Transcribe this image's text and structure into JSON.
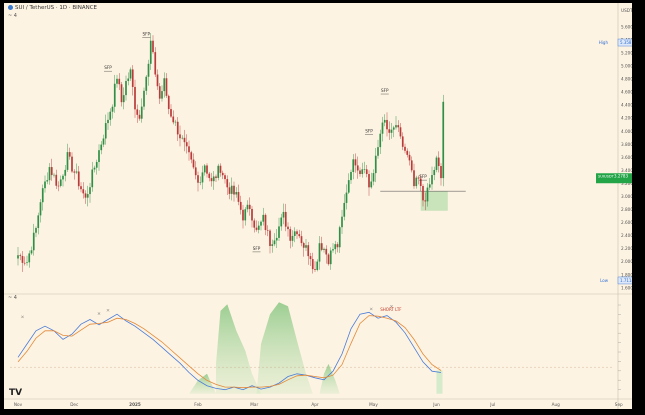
{
  "header": {
    "symbol_title": "SUI / TetherUS · 1D · BINANCE",
    "currency": "USDT",
    "indicator_marker": "~ 4",
    "osc_marker": "~ 4"
  },
  "chart_data": [
    {
      "type": "candlestick",
      "title": "SUI / TetherUS · 1D · BINANCE",
      "xlabel": "",
      "ylabel": "USDT",
      "x_ticks": [
        "Nov",
        "Dec",
        "2025",
        "Feb",
        "Mar",
        "Apr",
        "May",
        "Jun",
        "Jul",
        "Aug",
        "Sep"
      ],
      "y_ticks": [
        "1.6000",
        "1.8000",
        "2.0000",
        "2.2000",
        "2.4000",
        "2.6000",
        "2.8000",
        "3.0000",
        "3.2000",
        "3.4000",
        "3.6000",
        "3.8000",
        "4.0000",
        "4.2000",
        "4.4000",
        "4.6000",
        "4.8000",
        "5.0000",
        "5.2000",
        "5.4000",
        "5.6000"
      ],
      "ylim": [
        1.55,
        5.75
      ],
      "price_labels": [
        {
          "name": "High",
          "value": "5.3587",
          "color": "#2f6fd6"
        },
        {
          "name": "SUIUSDT",
          "value": "3.2783",
          "color": "#22a447"
        },
        {
          "name": "Low",
          "value": "1.7114",
          "color": "#2f6fd6"
        }
      ],
      "annotations": [
        "SFP",
        "SFP",
        "SFP",
        "SFP",
        "SFP",
        "SFP"
      ],
      "support_level": 3.08,
      "demand_zone": [
        2.78,
        3.08
      ],
      "anchors": [
        [
          0,
          2.1
        ],
        [
          4,
          2.0
        ],
        [
          8,
          2.5
        ],
        [
          10,
          2.95
        ],
        [
          14,
          3.45
        ],
        [
          18,
          3.15
        ],
        [
          22,
          3.6
        ],
        [
          26,
          3.3
        ],
        [
          30,
          2.95
        ],
        [
          34,
          3.45
        ],
        [
          38,
          3.95
        ],
        [
          42,
          4.45
        ],
        [
          44,
          4.85
        ],
        [
          46,
          4.45
        ],
        [
          48,
          4.75
        ],
        [
          50,
          4.9
        ],
        [
          52,
          4.4
        ],
        [
          54,
          4.2
        ],
        [
          56,
          4.7
        ],
        [
          58,
          5.0
        ],
        [
          59,
          5.36
        ],
        [
          61,
          4.9
        ],
        [
          63,
          4.5
        ],
        [
          65,
          4.75
        ],
        [
          67,
          4.35
        ],
        [
          70,
          4.1
        ],
        [
          73,
          3.85
        ],
        [
          76,
          3.6
        ],
        [
          80,
          3.2
        ],
        [
          83,
          3.5
        ],
        [
          86,
          3.2
        ],
        [
          90,
          3.45
        ],
        [
          93,
          3.15
        ],
        [
          97,
          3.0
        ],
        [
          100,
          2.7
        ],
        [
          103,
          2.85
        ],
        [
          106,
          2.45
        ],
        [
          109,
          2.65
        ],
        [
          112,
          2.3
        ],
        [
          115,
          2.45
        ],
        [
          118,
          2.7
        ],
        [
          121,
          2.4
        ],
        [
          124,
          2.5
        ],
        [
          127,
          2.25
        ],
        [
          130,
          2.1
        ],
        [
          132,
          1.85
        ],
        [
          134,
          2.3
        ],
        [
          136,
          2.2
        ],
        [
          138,
          2.05
        ],
        [
          140,
          2.2
        ],
        [
          142,
          2.25
        ],
        [
          144,
          2.65
        ],
        [
          146,
          3.1
        ],
        [
          148,
          3.45
        ],
        [
          150,
          3.55
        ],
        [
          152,
          3.4
        ],
        [
          154,
          3.5
        ],
        [
          156,
          3.15
        ],
        [
          158,
          3.35
        ],
        [
          160,
          3.75
        ],
        [
          162,
          4.2
        ],
        [
          164,
          4.0
        ],
        [
          166,
          3.95
        ],
        [
          168,
          4.1
        ],
        [
          170,
          3.85
        ],
        [
          172,
          3.7
        ],
        [
          174,
          3.5
        ],
        [
          176,
          3.15
        ],
        [
          178,
          3.25
        ],
        [
          180,
          2.95
        ],
        [
          182,
          3.05
        ],
        [
          184,
          3.3
        ],
        [
          186,
          3.55
        ],
        [
          188,
          3.28
        ]
      ]
    },
    {
      "type": "line",
      "title": "",
      "series": [
        {
          "name": "",
          "color": "#4a7bd8",
          "values": [
            [
              0,
              0.15
            ],
            [
              4,
              0.35
            ],
            [
              8,
              0.55
            ],
            [
              12,
              0.62
            ],
            [
              16,
              0.55
            ],
            [
              20,
              0.42
            ],
            [
              24,
              0.5
            ],
            [
              28,
              0.65
            ],
            [
              32,
              0.72
            ],
            [
              36,
              0.64
            ],
            [
              40,
              0.72
            ],
            [
              44,
              0.8
            ],
            [
              48,
              0.7
            ],
            [
              52,
              0.62
            ],
            [
              56,
              0.52
            ],
            [
              60,
              0.42
            ],
            [
              64,
              0.3
            ],
            [
              68,
              0.18
            ],
            [
              72,
              0.06
            ],
            [
              76,
              -0.08
            ],
            [
              80,
              -0.2
            ],
            [
              84,
              -0.28
            ],
            [
              88,
              -0.32
            ],
            [
              92,
              -0.34
            ],
            [
              96,
              -0.3
            ],
            [
              100,
              -0.34
            ],
            [
              104,
              -0.28
            ],
            [
              108,
              -0.33
            ],
            [
              112,
              -0.3
            ],
            [
              116,
              -0.24
            ],
            [
              120,
              -0.14
            ],
            [
              124,
              -0.1
            ],
            [
              128,
              -0.12
            ],
            [
              132,
              -0.16
            ],
            [
              136,
              -0.19
            ],
            [
              140,
              -0.06
            ],
            [
              144,
              0.2
            ],
            [
              148,
              0.58
            ],
            [
              152,
              0.8
            ],
            [
              156,
              0.83
            ],
            [
              160,
              0.74
            ],
            [
              164,
              0.78
            ],
            [
              168,
              0.68
            ],
            [
              172,
              0.52
            ],
            [
              176,
              0.3
            ],
            [
              180,
              0.08
            ],
            [
              184,
              -0.06
            ],
            [
              188,
              -0.08
            ]
          ]
        },
        {
          "name": "",
          "color": "#e2893a",
          "values": [
            [
              0,
              0.08
            ],
            [
              4,
              0.24
            ],
            [
              8,
              0.44
            ],
            [
              12,
              0.55
            ],
            [
              16,
              0.55
            ],
            [
              20,
              0.48
            ],
            [
              24,
              0.47
            ],
            [
              28,
              0.56
            ],
            [
              32,
              0.65
            ],
            [
              36,
              0.66
            ],
            [
              40,
              0.68
            ],
            [
              44,
              0.74
            ],
            [
              48,
              0.72
            ],
            [
              52,
              0.66
            ],
            [
              56,
              0.58
            ],
            [
              60,
              0.48
            ],
            [
              64,
              0.38
            ],
            [
              68,
              0.26
            ],
            [
              72,
              0.14
            ],
            [
              76,
              0.02
            ],
            [
              80,
              -0.1
            ],
            [
              84,
              -0.2
            ],
            [
              88,
              -0.26
            ],
            [
              92,
              -0.3
            ],
            [
              96,
              -0.3
            ],
            [
              100,
              -0.31
            ],
            [
              104,
              -0.3
            ],
            [
              108,
              -0.3
            ],
            [
              112,
              -0.29
            ],
            [
              116,
              -0.26
            ],
            [
              120,
              -0.19
            ],
            [
              124,
              -0.13
            ],
            [
              128,
              -0.12
            ],
            [
              132,
              -0.14
            ],
            [
              136,
              -0.16
            ],
            [
              140,
              -0.12
            ],
            [
              144,
              0.04
            ],
            [
              148,
              0.36
            ],
            [
              152,
              0.66
            ],
            [
              156,
              0.78
            ],
            [
              160,
              0.77
            ],
            [
              164,
              0.74
            ],
            [
              168,
              0.7
            ],
            [
              172,
              0.6
            ],
            [
              176,
              0.42
            ],
            [
              180,
              0.2
            ],
            [
              184,
              0.04
            ],
            [
              188,
              -0.05
            ]
          ]
        }
      ],
      "ylim": [
        -0.45,
        1.0
      ],
      "annotation_labels": [
        "SHORT LTF"
      ]
    }
  ]
}
